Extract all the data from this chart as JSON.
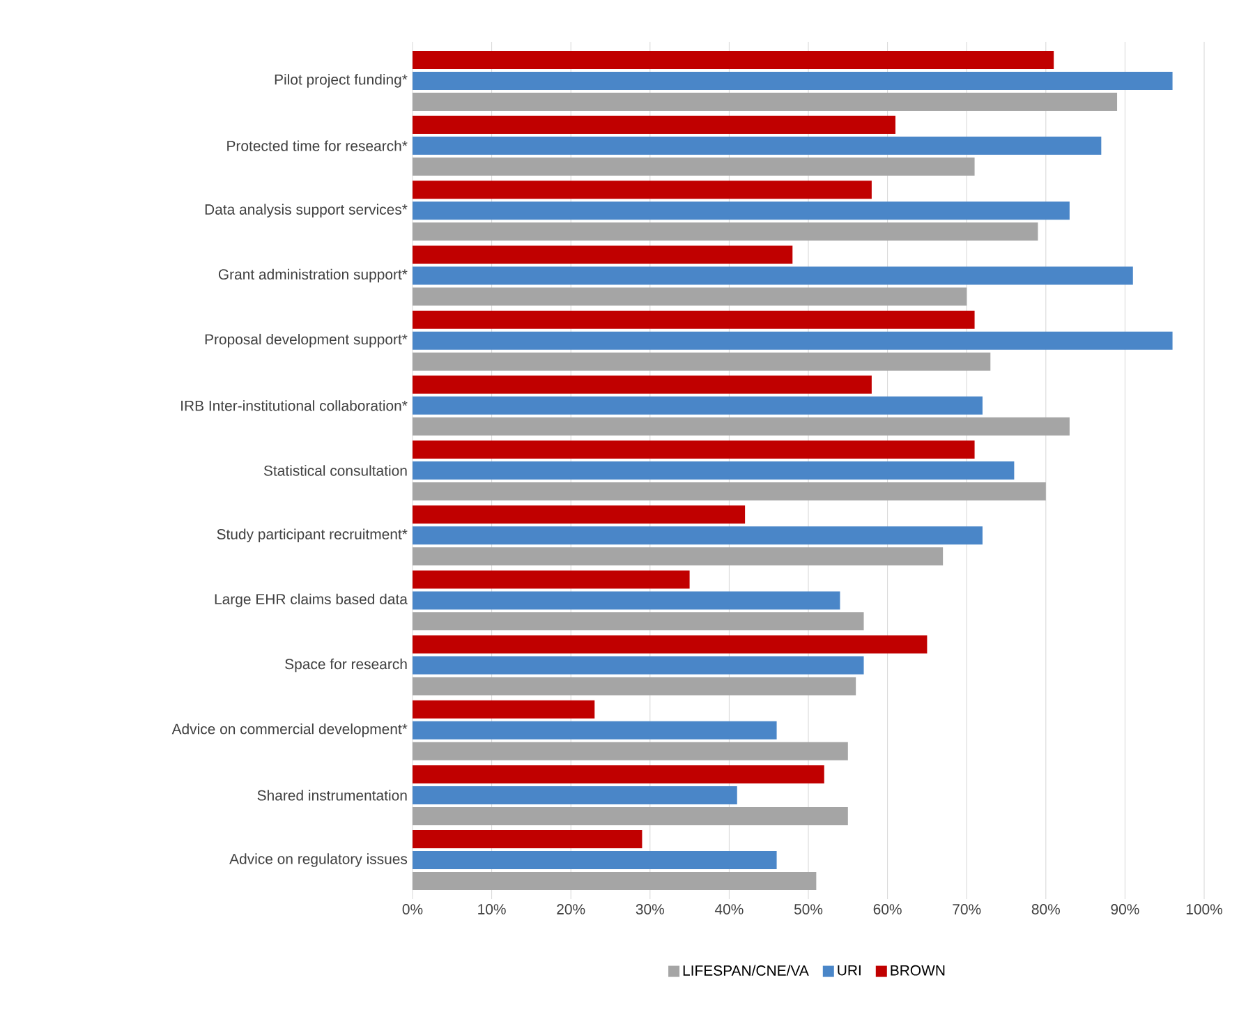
{
  "chart_data": {
    "type": "bar",
    "orientation": "horizontal",
    "categories": [
      "Pilot project funding*",
      "Protected time for research*",
      "Data analysis support services*",
      "Grant administration support*",
      "Proposal development support*",
      "IRB Inter-institutional collaboration*",
      "Statistical consultation",
      "Study participant recruitment*",
      "Large EHR claims based data",
      "Space for research",
      "Advice on commercial development*",
      "Shared instrumentation",
      "Advice on regulatory issues"
    ],
    "series": [
      {
        "name": "LIFESPAN/CNE/VA",
        "color": "#a5a5a5",
        "values": [
          89,
          71,
          79,
          70,
          73,
          83,
          80,
          67,
          57,
          56,
          55,
          55,
          51
        ]
      },
      {
        "name": "URI",
        "color": "#4a86c8",
        "values": [
          96,
          87,
          83,
          91,
          96,
          72,
          76,
          72,
          54,
          57,
          46,
          41,
          46
        ]
      },
      {
        "name": "BROWN",
        "color": "#c00000",
        "values": [
          81,
          61,
          58,
          48,
          71,
          58,
          71,
          42,
          35,
          65,
          23,
          52,
          29
        ]
      }
    ],
    "xlim": [
      0,
      100
    ],
    "xticks": [
      {
        "value": 0,
        "label": "0%"
      },
      {
        "value": 10,
        "label": "10%"
      },
      {
        "value": 20,
        "label": "20%"
      },
      {
        "value": 30,
        "label": "30%"
      },
      {
        "value": 40,
        "label": "40%"
      },
      {
        "value": 50,
        "label": "50%"
      },
      {
        "value": 60,
        "label": "60%"
      },
      {
        "value": 70,
        "label": "70%"
      },
      {
        "value": 80,
        "label": "80%"
      },
      {
        "value": 90,
        "label": "90%"
      },
      {
        "value": 100,
        "label": "100%"
      }
    ],
    "grid": "x",
    "legend": "bottom"
  }
}
